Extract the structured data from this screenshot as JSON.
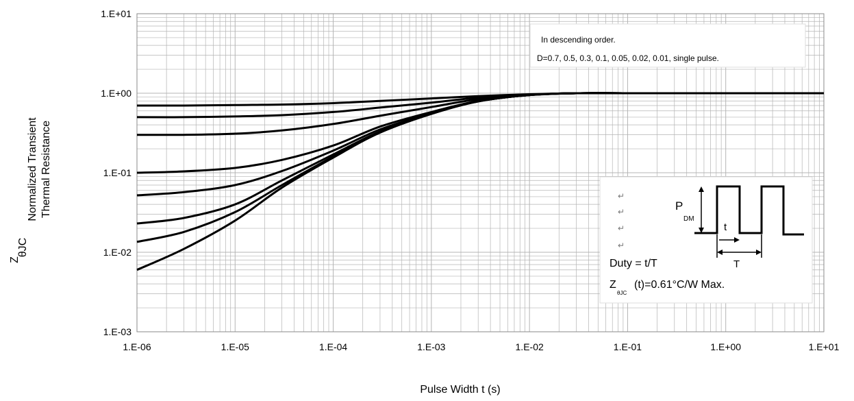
{
  "chart_data": {
    "type": "line",
    "x_scale": "log",
    "y_scale": "log",
    "xlim": [
      1e-06,
      10
    ],
    "ylim": [
      0.001,
      10
    ],
    "grid": true,
    "xlabel": "Pulse Width t (s)",
    "ylabel": {
      "symbol_main": "Z",
      "symbol_sub": "θJC",
      "line1": "Normalized Transient",
      "line2": "Thermal Resistance"
    },
    "x_ticks": [
      {
        "value": 1e-06,
        "label": "1.E-06"
      },
      {
        "value": 1e-05,
        "label": "1.E-05"
      },
      {
        "value": 0.0001,
        "label": "1.E-04"
      },
      {
        "value": 0.001,
        "label": "1.E-03"
      },
      {
        "value": 0.01,
        "label": "1.E-02"
      },
      {
        "value": 0.1,
        "label": "1.E-01"
      },
      {
        "value": 1,
        "label": "1.E+00"
      },
      {
        "value": 10,
        "label": "1.E+01"
      }
    ],
    "y_ticks": [
      {
        "value": 0.001,
        "label": "1.E-03"
      },
      {
        "value": 0.01,
        "label": "1.E-02"
      },
      {
        "value": 0.1,
        "label": "1.E-01"
      },
      {
        "value": 1,
        "label": "1.E+00"
      },
      {
        "value": 10,
        "label": "1.E+01"
      }
    ],
    "x": [
      1e-06,
      3e-06,
      1e-05,
      3e-05,
      0.0001,
      0.0003,
      0.001,
      0.003,
      0.01,
      0.03,
      0.1,
      1,
      10
    ],
    "series": [
      {
        "values": [
          0.7,
          0.7,
          0.71,
          0.72,
          0.75,
          0.8,
          0.86,
          0.92,
          0.97,
          1,
          1,
          1,
          1
        ]
      },
      {
        "values": [
          0.5,
          0.5,
          0.51,
          0.53,
          0.58,
          0.66,
          0.76,
          0.88,
          0.96,
          1,
          1,
          1,
          1
        ]
      },
      {
        "values": [
          0.3,
          0.3,
          0.31,
          0.34,
          0.41,
          0.52,
          0.67,
          0.84,
          0.95,
          1,
          1,
          1,
          1
        ]
      },
      {
        "values": [
          0.1,
          0.104,
          0.115,
          0.145,
          0.22,
          0.38,
          0.58,
          0.8,
          0.95,
          1,
          1,
          1,
          1
        ]
      },
      {
        "values": [
          0.052,
          0.057,
          0.07,
          0.105,
          0.19,
          0.35,
          0.56,
          0.79,
          0.95,
          1,
          1,
          1,
          1
        ]
      },
      {
        "values": [
          0.023,
          0.027,
          0.04,
          0.08,
          0.17,
          0.33,
          0.55,
          0.79,
          0.95,
          1,
          1,
          1,
          1
        ]
      },
      {
        "values": [
          0.0135,
          0.018,
          0.032,
          0.07,
          0.16,
          0.32,
          0.55,
          0.79,
          0.95,
          1,
          1,
          1,
          1
        ]
      },
      {
        "values": [
          0.006,
          0.011,
          0.025,
          0.065,
          0.155,
          0.32,
          0.55,
          0.79,
          0.95,
          1,
          1,
          1,
          1
        ]
      }
    ],
    "annotations": {
      "legend_line1": "In descending order.",
      "legend_line2": "D=0.7, 0.5, 0.3, 0.1, 0.05, 0.02, 0.01, single pulse.",
      "pdm_main": "P",
      "pdm_sub": "DM",
      "t_label": "t",
      "T_label": "T",
      "duty": "Duty = t/T",
      "z_main": "Z",
      "z_sub": "θJC",
      "z_value": "(t)=0.61°C/W Max."
    }
  },
  "colors": {
    "curve": "#000000",
    "grid": "#b4b4b4",
    "frame": "#8a8a8a",
    "background": "#ffffff"
  }
}
